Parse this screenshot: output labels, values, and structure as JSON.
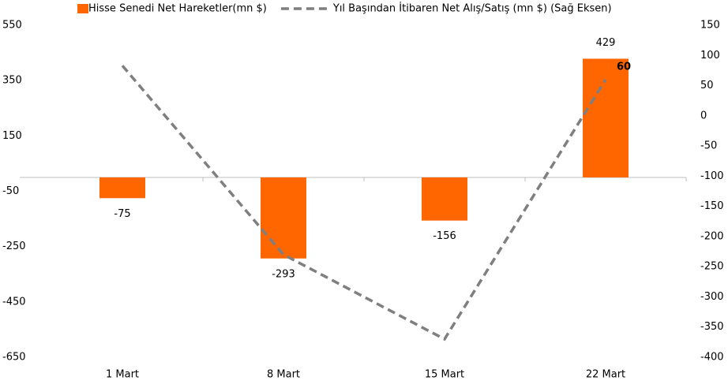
{
  "chart_data": {
    "type": "bar",
    "categories": [
      "1 Mart",
      "8 Mart",
      "15 Mart",
      "22 Mart"
    ],
    "series": [
      {
        "name": "Hisse Senedi Net Hareketler(mn $)",
        "type": "bar",
        "color": "#ff6600",
        "values": [
          -75,
          -293,
          -156,
          429
        ]
      },
      {
        "name": "Yıl Başından İtibaren Net Alış/Satış (mn $) (Sağ Eksen)",
        "type": "line",
        "axis": "y2",
        "color": "#7f7f7f",
        "dashed": true,
        "data_labels": "last",
        "values": [
          83,
          -230,
          -370,
          60
        ]
      }
    ],
    "ylim": [
      -650,
      550
    ],
    "yticks": [
      550,
      350,
      150,
      -50,
      -250,
      -450,
      -650
    ],
    "y2lim": [
      -400,
      150
    ],
    "y2ticks": [
      150,
      100,
      50,
      0,
      -50,
      -100,
      -150,
      -200,
      -250,
      -300,
      -350,
      -400
    ],
    "legend": "top",
    "grid": false
  }
}
